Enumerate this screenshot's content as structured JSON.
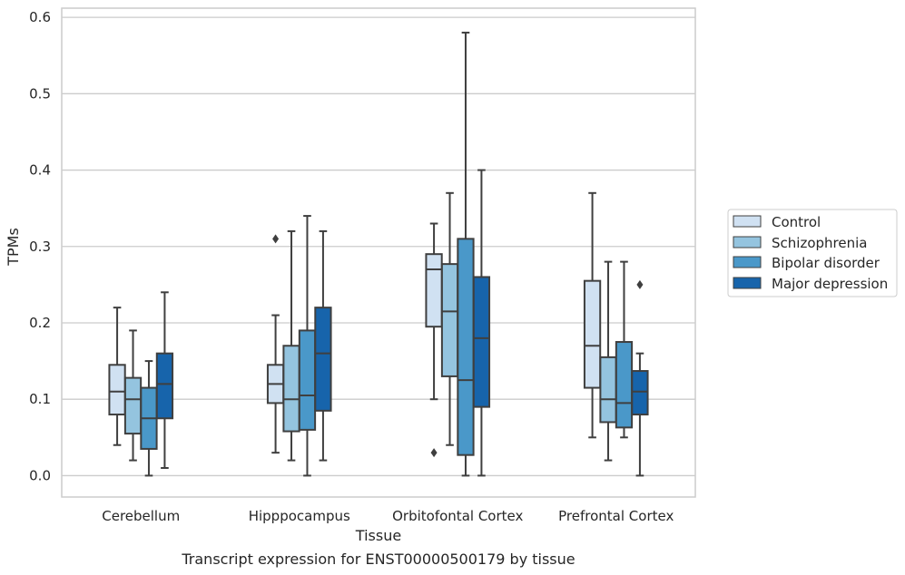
{
  "chart_data": {
    "type": "box",
    "caption": "Transcript expression for ENST00000500179 by tissue",
    "xlabel": "Tissue",
    "ylabel": "TPMs",
    "ylim": [
      -0.028,
      0.612
    ],
    "yticks": [
      0.0,
      0.1,
      0.2,
      0.3,
      0.4,
      0.5,
      0.6
    ],
    "ytick_labels": [
      "0.0",
      "0.1",
      "0.2",
      "0.3",
      "0.4",
      "0.5",
      "0.6"
    ],
    "grid": "horizontal",
    "legend_placement": "right",
    "categories": [
      "Cerebellum",
      "Hipppocampus",
      "Orbitofontal Cortex",
      "Prefrontal Cortex"
    ],
    "series": [
      {
        "name": "Control",
        "color": "#d0e1f2",
        "boxes": [
          {
            "whislo": 0.04,
            "q1": 0.08,
            "med": 0.11,
            "q3": 0.145,
            "whishi": 0.22,
            "fliers": []
          },
          {
            "whislo": 0.03,
            "q1": 0.095,
            "med": 0.12,
            "q3": 0.145,
            "whishi": 0.21,
            "fliers": [
              0.31
            ]
          },
          {
            "whislo": 0.1,
            "q1": 0.195,
            "med": 0.27,
            "q3": 0.29,
            "whishi": 0.33,
            "fliers": [
              0.03
            ]
          },
          {
            "whislo": 0.05,
            "q1": 0.115,
            "med": 0.17,
            "q3": 0.255,
            "whishi": 0.37,
            "fliers": []
          }
        ]
      },
      {
        "name": "Schizophrenia",
        "color": "#94c4df",
        "boxes": [
          {
            "whislo": 0.02,
            "q1": 0.055,
            "med": 0.1,
            "q3": 0.128,
            "whishi": 0.19,
            "fliers": []
          },
          {
            "whislo": 0.02,
            "q1": 0.058,
            "med": 0.1,
            "q3": 0.17,
            "whishi": 0.32,
            "fliers": []
          },
          {
            "whislo": 0.04,
            "q1": 0.13,
            "med": 0.215,
            "q3": 0.277,
            "whishi": 0.37,
            "fliers": []
          },
          {
            "whislo": 0.02,
            "q1": 0.07,
            "med": 0.1,
            "q3": 0.155,
            "whishi": 0.28,
            "fliers": []
          }
        ]
      },
      {
        "name": "Bipolar disorder",
        "color": "#4a98c9",
        "boxes": [
          {
            "whislo": 0.0,
            "q1": 0.035,
            "med": 0.075,
            "q3": 0.115,
            "whishi": 0.15,
            "fliers": []
          },
          {
            "whislo": 0.0,
            "q1": 0.06,
            "med": 0.105,
            "q3": 0.19,
            "whishi": 0.34,
            "fliers": []
          },
          {
            "whislo": 0.0,
            "q1": 0.027,
            "med": 0.125,
            "q3": 0.31,
            "whishi": 0.58,
            "fliers": []
          },
          {
            "whislo": 0.05,
            "q1": 0.063,
            "med": 0.095,
            "q3": 0.175,
            "whishi": 0.28,
            "fliers": []
          }
        ]
      },
      {
        "name": "Major depression",
        "color": "#1764ab",
        "boxes": [
          {
            "whislo": 0.01,
            "q1": 0.075,
            "med": 0.12,
            "q3": 0.16,
            "whishi": 0.24,
            "fliers": []
          },
          {
            "whislo": 0.02,
            "q1": 0.085,
            "med": 0.16,
            "q3": 0.22,
            "whishi": 0.32,
            "fliers": []
          },
          {
            "whislo": 0.0,
            "q1": 0.09,
            "med": 0.18,
            "q3": 0.26,
            "whishi": 0.4,
            "fliers": []
          },
          {
            "whislo": 0.0,
            "q1": 0.08,
            "med": 0.11,
            "q3": 0.137,
            "whishi": 0.16,
            "fliers": [
              0.25
            ]
          }
        ]
      }
    ]
  }
}
